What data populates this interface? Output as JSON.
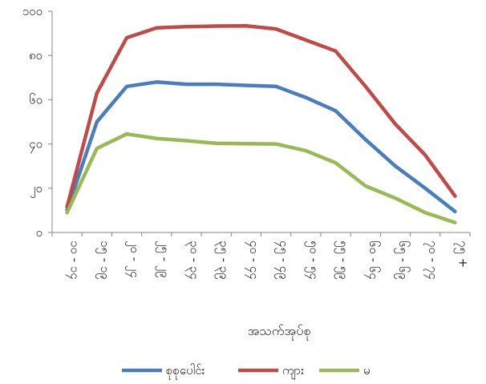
{
  "chart_data": {
    "type": "line",
    "title": "",
    "xlabel": "အသက်အုပ်စု",
    "ylabel": "",
    "ylim": [
      0,
      100
    ],
    "yticks": [
      0,
      20,
      40,
      60,
      80,
      100
    ],
    "ytick_labels": [
      "၀",
      "၂၀",
      "၄၀",
      "၆၀",
      "၈၀",
      "၁၀၀"
    ],
    "categories": [
      "၁၀ - ၁၄",
      "၁၅ - ၁၉",
      "၂၀ - ၂၄",
      "၂၅ - ၂၉",
      "၃၀ - ၃၄",
      "၃၅ - ၃၉",
      "၄၀ - ၄၄",
      "၄၅ - ၄၉",
      "၅၀ - ၅၄",
      "၅၅ - ၅၉",
      "၆၀ - ၆၄",
      "၆၅ - ၆၉",
      "၇၀ - ၇၄",
      "၇၅ +"
    ],
    "grid": false,
    "legend_position": "bottom",
    "series": [
      {
        "name": "စုစုပေါင်း",
        "color": "#4a7ebb",
        "values": [
          10,
          50,
          66,
          68,
          67,
          67,
          66.5,
          66,
          61,
          55,
          42,
          30,
          20,
          9.5
        ]
      },
      {
        "name": "ကျား",
        "color": "#be4b48",
        "values": [
          11.5,
          63,
          88,
          92.5,
          93,
          93.3,
          93.4,
          92,
          87,
          82,
          66,
          49,
          35,
          16.5
        ]
      },
      {
        "name": "မ",
        "color": "#98b954",
        "values": [
          9,
          38,
          44.5,
          42.5,
          41.5,
          40.3,
          40.1,
          40,
          37,
          31.5,
          21,
          15.5,
          9,
          4.5
        ]
      }
    ]
  }
}
